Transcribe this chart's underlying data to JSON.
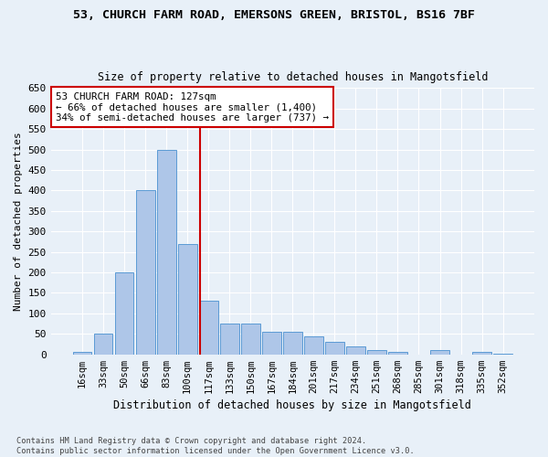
{
  "title_line1": "53, CHURCH FARM ROAD, EMERSONS GREEN, BRISTOL, BS16 7BF",
  "title_line2": "Size of property relative to detached houses in Mangotsfield",
  "xlabel": "Distribution of detached houses by size in Mangotsfield",
  "ylabel": "Number of detached properties",
  "categories": [
    "16sqm",
    "33sqm",
    "50sqm",
    "66sqm",
    "83sqm",
    "100sqm",
    "117sqm",
    "133sqm",
    "150sqm",
    "167sqm",
    "184sqm",
    "201sqm",
    "217sqm",
    "234sqm",
    "251sqm",
    "268sqm",
    "285sqm",
    "301sqm",
    "318sqm",
    "335sqm",
    "352sqm"
  ],
  "values": [
    5,
    50,
    200,
    400,
    500,
    270,
    130,
    75,
    75,
    55,
    55,
    45,
    30,
    20,
    10,
    5,
    0,
    10,
    0,
    5,
    2
  ],
  "bar_color": "#aec6e8",
  "bar_edge_color": "#5b9bd5",
  "vline_color": "#cc0000",
  "annotation_text": "53 CHURCH FARM ROAD: 127sqm\n← 66% of detached houses are smaller (1,400)\n34% of semi-detached houses are larger (737) →",
  "annotation_box_color": "#ffffff",
  "annotation_box_edge_color": "#cc0000",
  "background_color": "#e8f0f8",
  "grid_color": "#ffffff",
  "footnote": "Contains HM Land Registry data © Crown copyright and database right 2024.\nContains public sector information licensed under the Open Government Licence v3.0.",
  "ylim": [
    0,
    650
  ],
  "yticks": [
    0,
    50,
    100,
    150,
    200,
    250,
    300,
    350,
    400,
    450,
    500,
    550,
    600,
    650
  ],
  "vline_index": 5.59
}
